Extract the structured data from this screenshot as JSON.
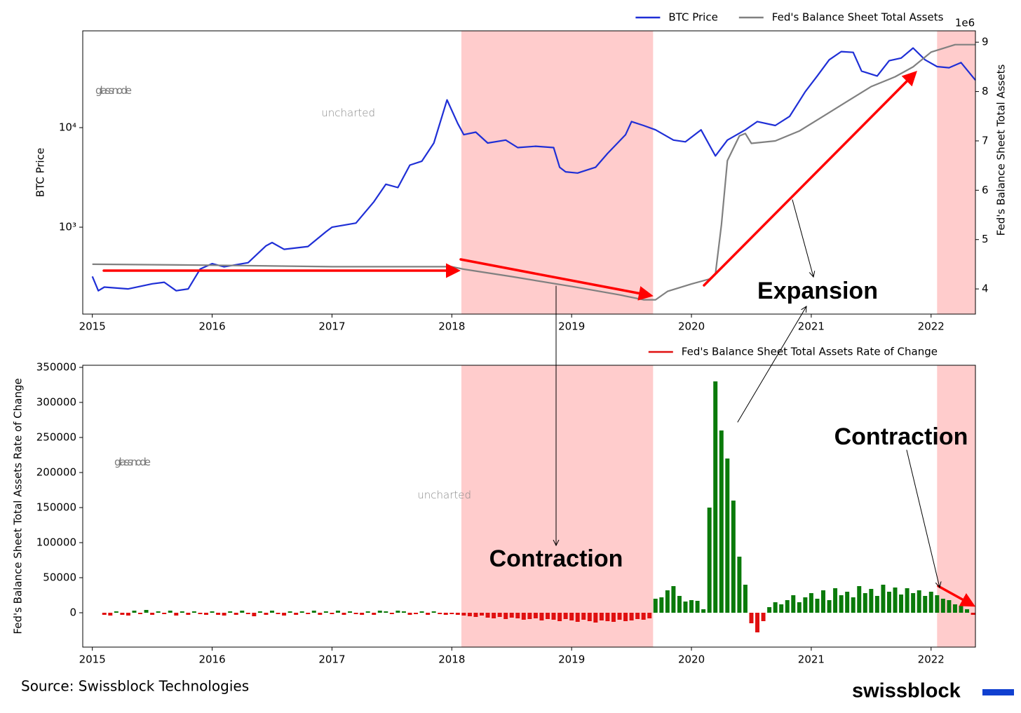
{
  "chart_data": [
    {
      "type": "line",
      "ylog": true,
      "xlim": [
        2014.92,
        2022.37
      ],
      "xticks": [
        2015,
        2016,
        2017,
        2018,
        2019,
        2020,
        2021,
        2022
      ],
      "ylim": [
        134,
        93800
      ],
      "yticks": [
        {
          "value": 1000,
          "label": "10³"
        },
        {
          "value": 10000,
          "label": "10⁴"
        }
      ],
      "y2lim": [
        3.49,
        9.23
      ],
      "y2ticks": [
        4,
        5,
        6,
        7,
        8,
        9
      ],
      "y2_offset_label": "1e6",
      "ylabel": "BTC Price",
      "y2label": "Fed's Balance Sheet Total Assets",
      "legend": "upper right",
      "shaded_spans": [
        [
          2018.08,
          2019.68
        ],
        [
          2022.05,
          2022.37
        ]
      ],
      "shade_color": "#ffcccc",
      "watermark": [
        "glassnode",
        "uncharted"
      ],
      "annotations": [
        "Expansion"
      ],
      "series": [
        {
          "name": "BTC Price",
          "color": "#1f2fd6",
          "x": [
            2015.0,
            2015.05,
            2015.1,
            2015.3,
            2015.5,
            2015.6,
            2015.7,
            2015.8,
            2015.9,
            2016.0,
            2016.1,
            2016.3,
            2016.45,
            2016.5,
            2016.6,
            2016.8,
            2016.95,
            2017.0,
            2017.2,
            2017.35,
            2017.45,
            2017.55,
            2017.65,
            2017.75,
            2017.85,
            2017.96,
            2018.05,
            2018.1,
            2018.2,
            2018.3,
            2018.45,
            2018.55,
            2018.7,
            2018.85,
            2018.9,
            2018.95,
            2019.05,
            2019.2,
            2019.3,
            2019.45,
            2019.5,
            2019.6,
            2019.7,
            2019.85,
            2019.95,
            2020.08,
            2020.2,
            2020.3,
            2020.45,
            2020.55,
            2020.7,
            2020.82,
            2020.95,
            2021.05,
            2021.15,
            2021.25,
            2021.35,
            2021.42,
            2021.55,
            2021.65,
            2021.75,
            2021.85,
            2021.95,
            2022.05,
            2022.15,
            2022.25,
            2022.37
          ],
          "values": [
            320,
            230,
            250,
            240,
            270,
            280,
            230,
            240,
            380,
            430,
            400,
            440,
            650,
            700,
            600,
            640,
            900,
            1000,
            1100,
            1800,
            2700,
            2500,
            4200,
            4600,
            7000,
            19000,
            11000,
            8500,
            9000,
            7000,
            7500,
            6300,
            6500,
            6300,
            4000,
            3600,
            3500,
            4000,
            5500,
            8500,
            11500,
            10500,
            9500,
            7500,
            7200,
            9500,
            5200,
            7500,
            9500,
            11500,
            10500,
            13000,
            23000,
            33000,
            48000,
            58000,
            57000,
            37000,
            33000,
            47000,
            50000,
            63000,
            48000,
            41000,
            40000,
            45000,
            30000
          ]
        },
        {
          "name": "Fed's Balance Sheet Total Assets",
          "color": "#808080",
          "axis": "y2",
          "x": [
            2015.0,
            2016.0,
            2017.0,
            2018.0,
            2018.1,
            2018.5,
            2019.0,
            2019.4,
            2019.6,
            2019.7,
            2019.8,
            2020.0,
            2020.15,
            2020.2,
            2020.25,
            2020.3,
            2020.4,
            2020.45,
            2020.5,
            2020.7,
            2020.9,
            2021.1,
            2021.3,
            2021.5,
            2021.7,
            2021.85,
            2022.0,
            2022.2,
            2022.37
          ],
          "values": [
            4.5,
            4.48,
            4.45,
            4.45,
            4.4,
            4.25,
            4.05,
            3.88,
            3.78,
            3.78,
            3.95,
            4.1,
            4.2,
            4.3,
            5.3,
            6.6,
            7.1,
            7.15,
            6.95,
            7.0,
            7.2,
            7.5,
            7.8,
            8.1,
            8.3,
            8.5,
            8.8,
            8.95,
            8.95
          ]
        }
      ]
    },
    {
      "type": "bar",
      "xlim": [
        2014.92,
        2022.37
      ],
      "xticks": [
        2015,
        2016,
        2017,
        2018,
        2019,
        2020,
        2021,
        2022
      ],
      "ylim": [
        -49000,
        353000
      ],
      "yticks": [
        0,
        50000,
        100000,
        150000,
        200000,
        250000,
        300000,
        350000
      ],
      "ylabel": "Fed's Balance Sheet Total Assets Rate of Change",
      "legend": "upper right",
      "shaded_spans": [
        [
          2018.08,
          2019.68
        ],
        [
          2022.05,
          2022.37
        ]
      ],
      "shade_color": "#ffcccc",
      "watermark": [
        "glassnode",
        "uncharted"
      ],
      "annotations": [
        "Contraction",
        "Contraction"
      ],
      "positive_color": "#0a7a0a",
      "negative_color": "#e01010",
      "series": [
        {
          "name": "Fed's Balance Sheet Total Assets Rate of Change",
          "color": "#e01010",
          "x": [
            2015.1,
            2015.15,
            2015.2,
            2015.25,
            2015.3,
            2015.35,
            2015.4,
            2015.45,
            2015.5,
            2015.55,
            2015.6,
            2015.65,
            2015.7,
            2015.75,
            2015.8,
            2015.85,
            2015.9,
            2015.95,
            2016,
            2016.05,
            2016.1,
            2016.15,
            2016.2,
            2016.25,
            2016.3,
            2016.35,
            2016.4,
            2016.45,
            2016.5,
            2016.55,
            2016.6,
            2016.65,
            2016.7,
            2016.75,
            2016.8,
            2016.85,
            2016.9,
            2016.95,
            2017,
            2017.05,
            2017.1,
            2017.15,
            2017.2,
            2017.25,
            2017.3,
            2017.35,
            2017.4,
            2017.45,
            2017.5,
            2017.55,
            2017.6,
            2017.65,
            2017.7,
            2017.75,
            2017.8,
            2017.85,
            2017.9,
            2017.95,
            2018,
            2018.05,
            2018.1,
            2018.15,
            2018.2,
            2018.25,
            2018.3,
            2018.35,
            2018.4,
            2018.45,
            2018.5,
            2018.55,
            2018.6,
            2018.65,
            2018.7,
            2018.75,
            2018.8,
            2018.85,
            2018.9,
            2018.95,
            2019,
            2019.05,
            2019.1,
            2019.15,
            2019.2,
            2019.25,
            2019.3,
            2019.35,
            2019.4,
            2019.45,
            2019.5,
            2019.55,
            2019.6,
            2019.65,
            2019.7,
            2019.75,
            2019.8,
            2019.85,
            2019.9,
            2019.95,
            2020,
            2020.05,
            2020.1,
            2020.15,
            2020.2,
            2020.25,
            2020.3,
            2020.35,
            2020.4,
            2020.45,
            2020.5,
            2020.55,
            2020.6,
            2020.65,
            2020.7,
            2020.75,
            2020.8,
            2020.85,
            2020.9,
            2020.95,
            2021,
            2021.05,
            2021.1,
            2021.15,
            2021.2,
            2021.25,
            2021.3,
            2021.35,
            2021.4,
            2021.45,
            2021.5,
            2021.55,
            2021.6,
            2021.65,
            2021.7,
            2021.75,
            2021.8,
            2021.85,
            2021.9,
            2021.95,
            2022,
            2022.05,
            2022.1,
            2022.15,
            2022.2,
            2022.25,
            2022.3,
            2022.35
          ],
          "values": [
            -3000,
            -4000,
            2000,
            -3000,
            -4000,
            3000,
            -2000,
            4000,
            -3000,
            2000,
            -2000,
            3000,
            -4000,
            2000,
            -3000,
            2000,
            -2000,
            -3000,
            2000,
            -3000,
            -4000,
            2000,
            -3000,
            3000,
            -2000,
            -5000,
            2000,
            -3000,
            3000,
            -2000,
            -4000,
            2000,
            -3000,
            2000,
            -2000,
            3000,
            -3000,
            2000,
            -2000,
            3000,
            -3000,
            2000,
            -2000,
            -3000,
            2000,
            -3000,
            3000,
            2000,
            -2000,
            3000,
            2000,
            -3000,
            -2000,
            2000,
            -3000,
            2000,
            -2000,
            -3000,
            -2000,
            -3000,
            -4000,
            -5000,
            -6000,
            -4000,
            -7000,
            -8000,
            -6000,
            -9000,
            -7000,
            -8000,
            -10000,
            -9000,
            -8000,
            -11000,
            -9000,
            -10000,
            -12000,
            -9000,
            -11000,
            -13000,
            -10000,
            -12000,
            -14000,
            -11000,
            -12000,
            -13000,
            -10000,
            -12000,
            -11000,
            -9000,
            -10000,
            -8000,
            20000,
            22000,
            32000,
            38000,
            24000,
            16000,
            18000,
            17000,
            5000,
            150000,
            330000,
            260000,
            220000,
            160000,
            80000,
            40000,
            -15000,
            -28000,
            -12000,
            8000,
            15000,
            12000,
            18000,
            25000,
            15000,
            22000,
            28000,
            20000,
            32000,
            18000,
            35000,
            25000,
            30000,
            22000,
            38000,
            28000,
            34000,
            24000,
            40000,
            30000,
            36000,
            26000,
            35000,
            28000,
            32000,
            24000,
            30000,
            25000,
            20000,
            18000,
            12000,
            10000,
            5000,
            -3000
          ]
        }
      ]
    }
  ],
  "source": "Source: Swissblock Technologies",
  "brand": "swissblock"
}
